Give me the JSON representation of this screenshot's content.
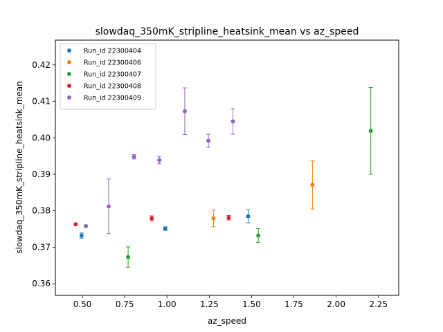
{
  "chart_data": {
    "type": "scatter",
    "title": "slowdaq_350mK_stripline_heatsink_mean vs az_speed",
    "xlabel": "az_speed",
    "ylabel": "slowdaq_350mK_stripline_heatsink_mean",
    "xlim": [
      0.34,
      2.37
    ],
    "ylim": [
      0.3568,
      0.4268
    ],
    "xticks": [
      0.5,
      0.75,
      1.0,
      1.25,
      1.5,
      1.75,
      2.0,
      2.25
    ],
    "xtick_labels": [
      "0.50",
      "0.75",
      "1.00",
      "1.25",
      "1.50",
      "1.75",
      "2.00",
      "2.25"
    ],
    "yticks": [
      0.36,
      0.37,
      0.38,
      0.39,
      0.4,
      0.41,
      0.42
    ],
    "ytick_labels": [
      "0.36",
      "0.37",
      "0.38",
      "0.39",
      "0.40",
      "0.41",
      "0.42"
    ],
    "grid": false,
    "legend_position": "top-left",
    "series": [
      {
        "name": "Run_id 22300404",
        "color": "#1f77b4",
        "points": [
          {
            "x": 0.495,
            "y": 0.3732,
            "err": 0.0007
          },
          {
            "x": 0.99,
            "y": 0.3751,
            "err": 0.0005
          },
          {
            "x": 1.48,
            "y": 0.3785,
            "err": 0.0018
          }
        ]
      },
      {
        "name": "Run_id 22300406",
        "color": "#ff7f0e",
        "points": [
          {
            "x": 1.275,
            "y": 0.3779,
            "err": 0.0023
          },
          {
            "x": 1.86,
            "y": 0.3871,
            "err": 0.0066
          }
        ]
      },
      {
        "name": "Run_id 22300407",
        "color": "#2ca02c",
        "points": [
          {
            "x": 0.77,
            "y": 0.3673,
            "err": 0.0028
          },
          {
            "x": 1.54,
            "y": 0.3732,
            "err": 0.0019
          },
          {
            "x": 2.205,
            "y": 0.4019,
            "err": 0.0119
          }
        ]
      },
      {
        "name": "Run_id 22300408",
        "color": "#d62728",
        "points": [
          {
            "x": 0.46,
            "y": 0.3763,
            "err": 0.0002
          },
          {
            "x": 0.91,
            "y": 0.3779,
            "err": 0.0007
          },
          {
            "x": 1.365,
            "y": 0.3781,
            "err": 0.0006
          }
        ]
      },
      {
        "name": "Run_id 22300409",
        "color": "#9467bd",
        "points": [
          {
            "x": 0.52,
            "y": 0.3758,
            "err": 0.0002
          },
          {
            "x": 0.655,
            "y": 0.3812,
            "err": 0.0075
          },
          {
            "x": 0.805,
            "y": 0.3948,
            "err": 0.0006
          },
          {
            "x": 0.955,
            "y": 0.3939,
            "err": 0.001
          },
          {
            "x": 1.105,
            "y": 0.4073,
            "err": 0.0064
          },
          {
            "x": 1.245,
            "y": 0.3992,
            "err": 0.0018
          },
          {
            "x": 1.39,
            "y": 0.4045,
            "err": 0.0035
          }
        ]
      }
    ]
  }
}
